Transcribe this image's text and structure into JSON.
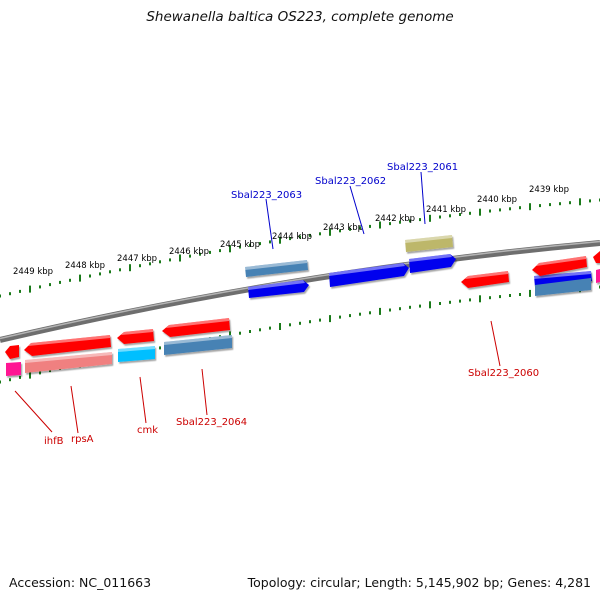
{
  "title": "Shewanella baltica OS223, complete genome",
  "footer": {
    "accession": "Accession: NC_011663",
    "topology": "Topology: circular; Length: 5,145,902 bp; Genes: 4,281"
  },
  "scale_labels": [
    "2449 kbp",
    "2448 kbp",
    "2447 kbp",
    "2446 kbp",
    "2445 kbp",
    "2444 kbp",
    "2443 kbp",
    "2442 kbp",
    "2441 kbp",
    "2440 kbp",
    "2439 kbp"
  ],
  "gene_labels": {
    "forward": [
      "Sbal223_2063",
      "Sbal223_2062",
      "Sbal223_2061"
    ],
    "reverse": [
      "ihfB",
      "rpsA",
      "cmk",
      "Sbal223_2064",
      "Sbal223_2060"
    ]
  },
  "colors": {
    "forward_label": "#0000cc",
    "reverse_label": "#cc0000",
    "tick": "#1a7a1a",
    "backbone": "#808080",
    "red": "#ff0000",
    "blue": "#0000ee",
    "steel_blue": "#4682b4",
    "khaki": "#bdb76b",
    "cyan": "#00bfff",
    "magenta": "#ff1493",
    "light_coral": "#f08080"
  }
}
